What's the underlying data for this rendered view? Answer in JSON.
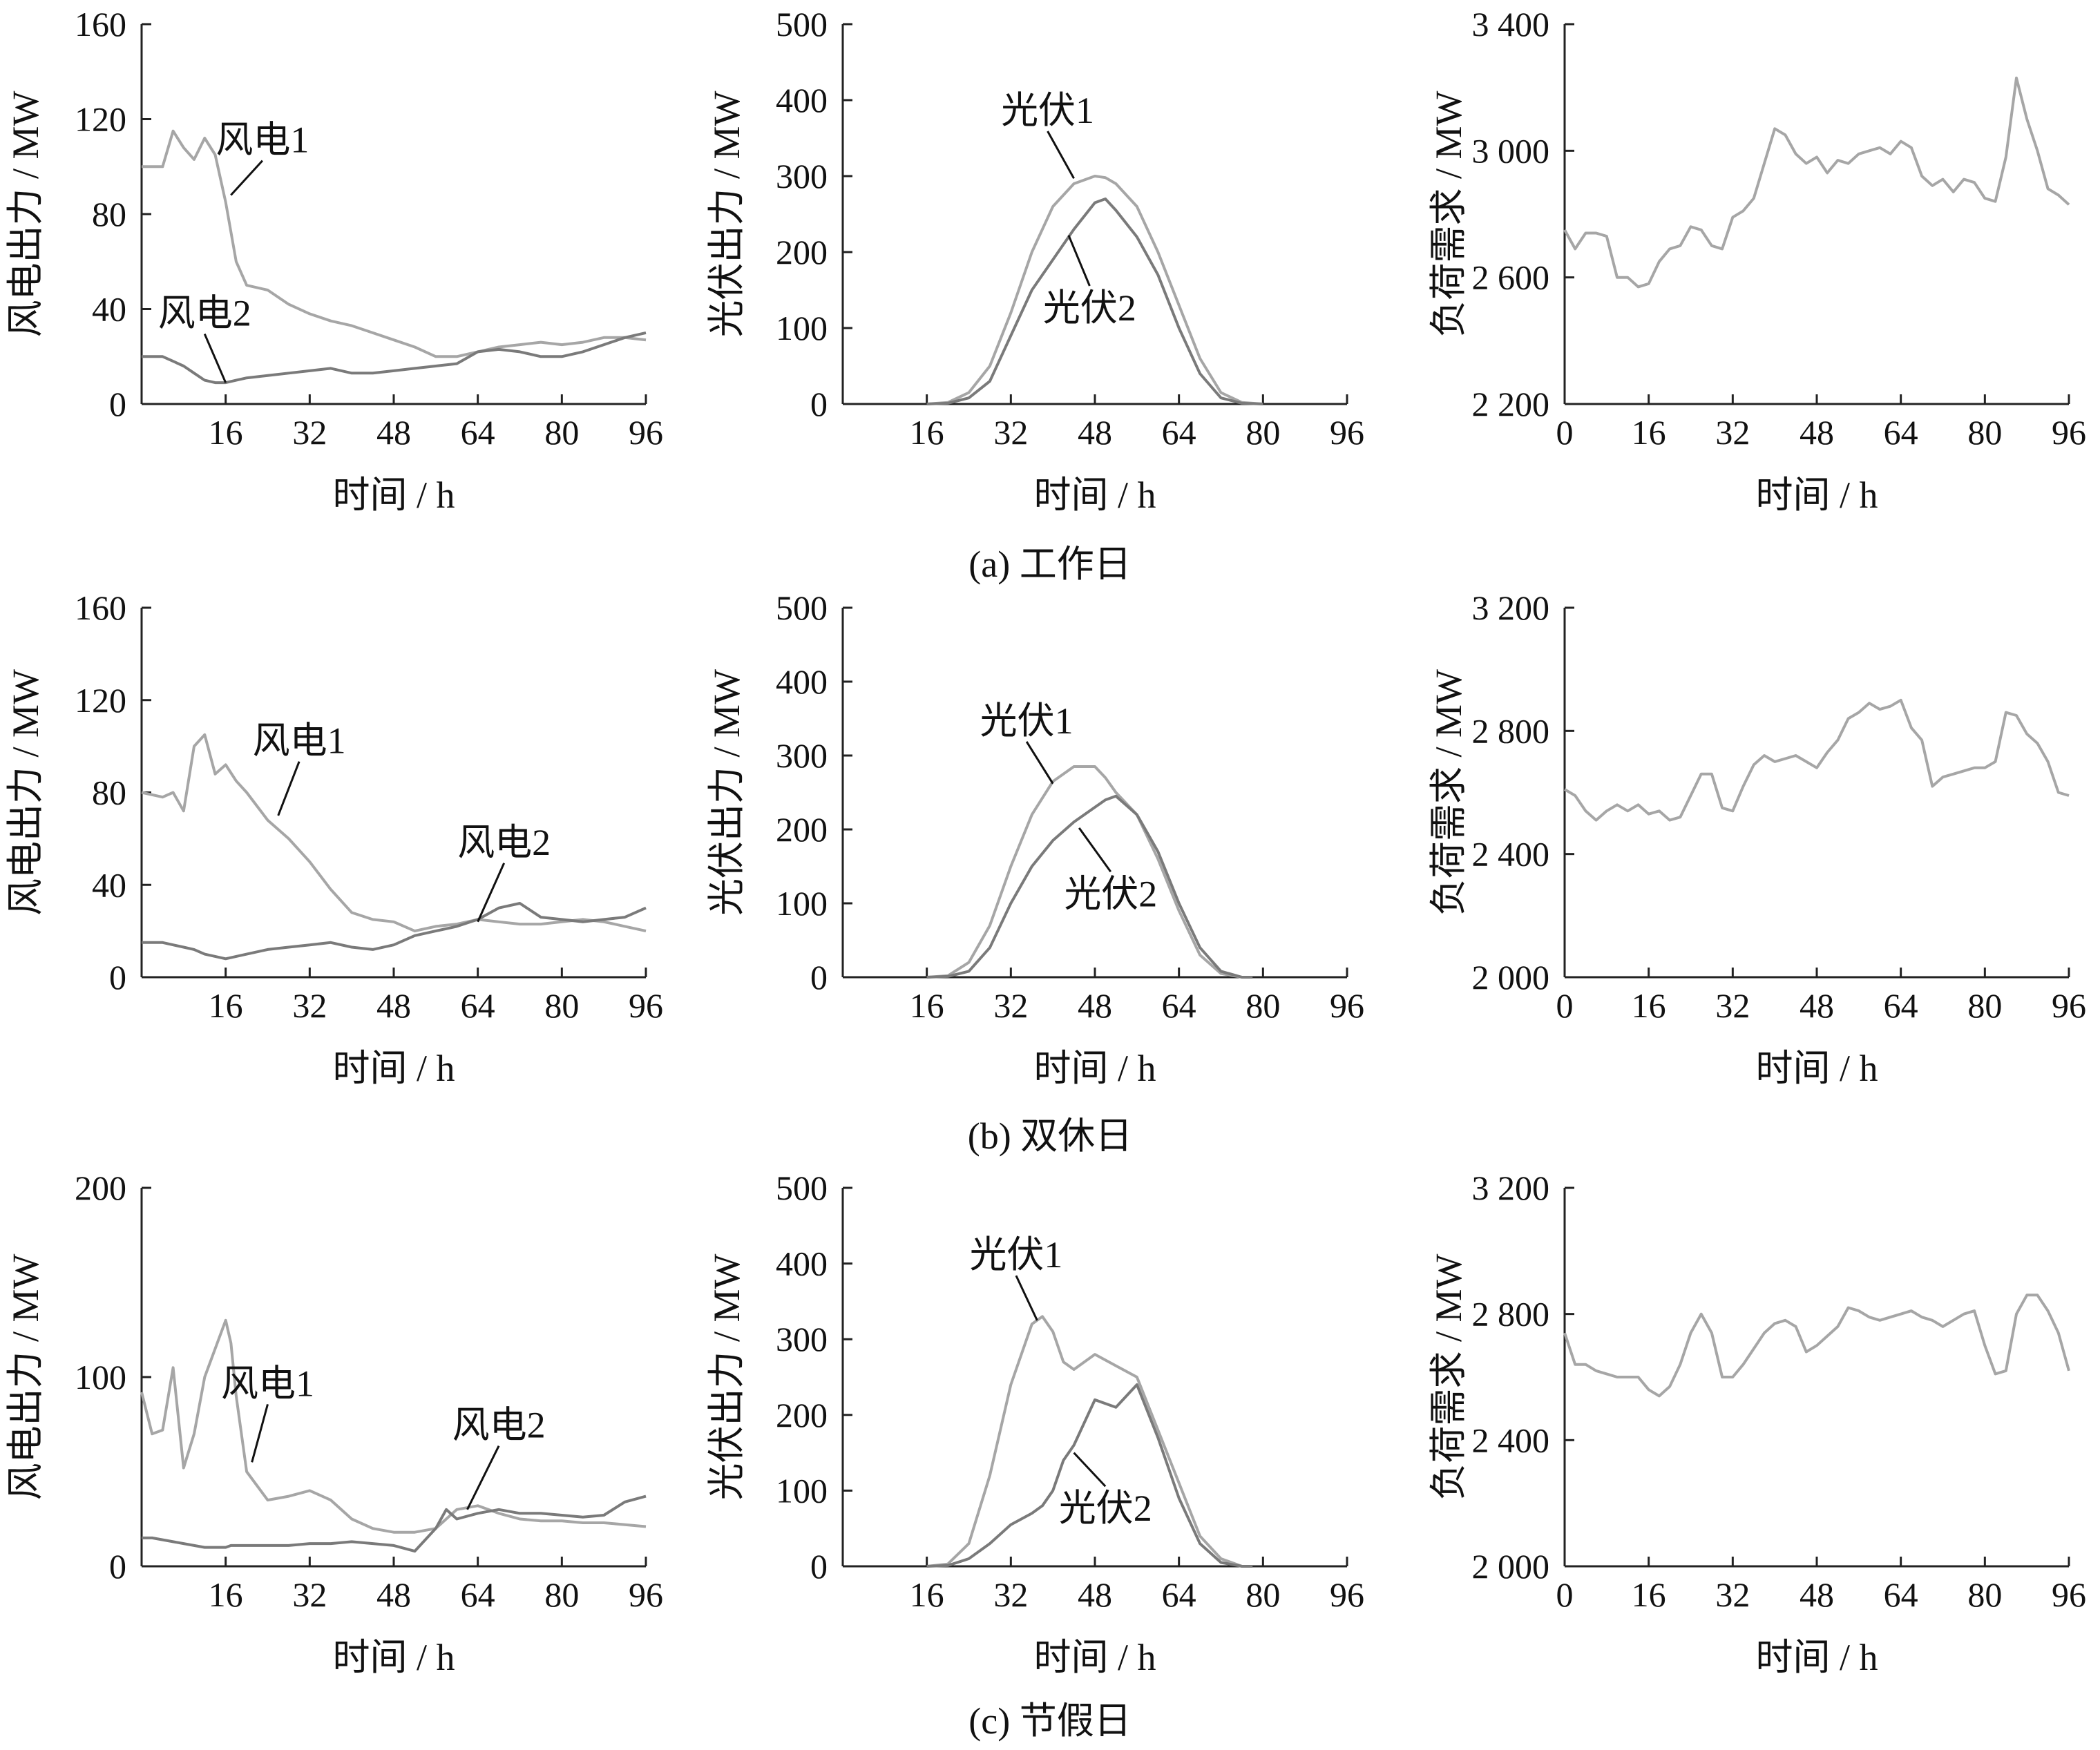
{
  "colors": {
    "series_light": "#a6a6a6",
    "series_dark": "#7a7a7a",
    "axis": "#222222",
    "leader": "#111111"
  },
  "captions": [
    "(a)  工作日",
    "(b)  双休日",
    "(c)  节假日"
  ],
  "chart_data": [
    {
      "id": "a-wind",
      "type": "line",
      "xlabel": "时间 / h",
      "ylabel": "风电出力 / MW",
      "xlim": [
        0,
        96
      ],
      "ylim": [
        0,
        160
      ],
      "xticks": [
        "16",
        "32",
        "48",
        "64",
        "80",
        "96"
      ],
      "yticks": [
        "0",
        "40",
        "80",
        "120",
        "160"
      ],
      "x": [
        0,
        4,
        6,
        8,
        10,
        12,
        14,
        16,
        18,
        20,
        24,
        28,
        32,
        36,
        40,
        44,
        48,
        52,
        56,
        60,
        64,
        68,
        72,
        76,
        80,
        84,
        88,
        92,
        96
      ],
      "series": [
        {
          "name": "风电1",
          "color": "light",
          "values": [
            100,
            100,
            115,
            108,
            103,
            112,
            105,
            85,
            60,
            50,
            48,
            42,
            38,
            35,
            33,
            30,
            27,
            24,
            20,
            20,
            22,
            24,
            25,
            26,
            25,
            26,
            28,
            28,
            27
          ]
        },
        {
          "name": "风电2",
          "color": "dark",
          "values": [
            20,
            20,
            18,
            16,
            13,
            10,
            9,
            9,
            10,
            11,
            12,
            13,
            14,
            15,
            13,
            13,
            14,
            15,
            16,
            17,
            22,
            23,
            22,
            20,
            20,
            22,
            25,
            28,
            30
          ]
        }
      ],
      "annotations": [
        {
          "text": "风电1",
          "x": 17,
          "y": 88,
          "tx": 23,
          "ty": 106
        },
        {
          "text": "风电2",
          "x": 16,
          "y": 9,
          "tx": 12,
          "ty": 33
        }
      ]
    },
    {
      "id": "a-pv",
      "type": "line",
      "xlabel": "时间 / h",
      "ylabel": "光伏出力 / MW",
      "xlim": [
        0,
        96
      ],
      "ylim": [
        0,
        500
      ],
      "xticks": [
        "16",
        "32",
        "48",
        "64",
        "80",
        "96"
      ],
      "yticks": [
        "0",
        "100",
        "200",
        "300",
        "400",
        "500"
      ],
      "x": [
        16,
        20,
        24,
        28,
        32,
        36,
        40,
        44,
        48,
        50,
        52,
        56,
        60,
        64,
        68,
        72,
        76,
        80
      ],
      "series": [
        {
          "name": "光伏1",
          "color": "light",
          "values": [
            0,
            2,
            15,
            50,
            120,
            200,
            260,
            290,
            300,
            298,
            290,
            260,
            200,
            130,
            60,
            15,
            2,
            0
          ]
        },
        {
          "name": "光伏2",
          "color": "dark",
          "values": [
            0,
            1,
            8,
            30,
            90,
            150,
            190,
            230,
            265,
            270,
            255,
            220,
            170,
            100,
            40,
            8,
            1,
            0
          ]
        }
      ],
      "annotations": [
        {
          "text": "光伏1",
          "x": 44,
          "y": 297,
          "tx": 39,
          "ty": 370
        },
        {
          "text": "光伏2",
          "x": 43,
          "y": 222,
          "tx": 47,
          "ty": 110
        }
      ]
    },
    {
      "id": "a-load",
      "type": "line",
      "xlabel": "时间 / h",
      "ylabel": "负荷需求 / MW",
      "xlim": [
        0,
        96
      ],
      "ylim": [
        2200,
        3400
      ],
      "xticks": [
        "0",
        "16",
        "32",
        "48",
        "64",
        "80",
        "96"
      ],
      "yticks": [
        "2 200",
        "2 600",
        "3 000",
        "3 400"
      ],
      "x": [
        0,
        2,
        4,
        6,
        8,
        10,
        12,
        14,
        16,
        18,
        20,
        22,
        24,
        26,
        28,
        30,
        32,
        34,
        36,
        38,
        40,
        42,
        44,
        46,
        48,
        50,
        52,
        54,
        56,
        58,
        60,
        62,
        64,
        66,
        68,
        70,
        72,
        74,
        76,
        78,
        80,
        82,
        84,
        86,
        88,
        90,
        92,
        94,
        96
      ],
      "series": [
        {
          "name": "",
          "color": "light",
          "values": [
            2750,
            2690,
            2740,
            2740,
            2730,
            2600,
            2600,
            2570,
            2580,
            2650,
            2690,
            2700,
            2760,
            2750,
            2700,
            2690,
            2790,
            2810,
            2850,
            2960,
            3070,
            3050,
            2990,
            2960,
            2980,
            2930,
            2970,
            2960,
            2990,
            3000,
            3010,
            2990,
            3030,
            3010,
            2920,
            2890,
            2910,
            2870,
            2910,
            2900,
            2850,
            2840,
            2980,
            3230,
            3100,
            3000,
            2880,
            2860,
            2830
          ]
        }
      ],
      "annotations": []
    },
    {
      "id": "b-wind",
      "type": "line",
      "xlabel": "时间 / h",
      "ylabel": "风电出力 / MW",
      "xlim": [
        0,
        96
      ],
      "ylim": [
        0,
        160
      ],
      "xticks": [
        "16",
        "32",
        "48",
        "64",
        "80",
        "96"
      ],
      "yticks": [
        "0",
        "40",
        "80",
        "120",
        "160"
      ],
      "x": [
        0,
        4,
        6,
        8,
        10,
        12,
        14,
        16,
        18,
        20,
        24,
        28,
        32,
        36,
        40,
        44,
        48,
        52,
        56,
        60,
        64,
        68,
        72,
        76,
        80,
        84,
        88,
        92,
        96
      ],
      "series": [
        {
          "name": "风电1",
          "color": "light",
          "values": [
            80,
            78,
            80,
            72,
            100,
            105,
            88,
            92,
            85,
            80,
            68,
            60,
            50,
            38,
            28,
            25,
            24,
            20,
            22,
            23,
            25,
            24,
            23,
            23,
            24,
            25,
            24,
            22,
            20
          ]
        },
        {
          "name": "风电2",
          "color": "dark",
          "values": [
            15,
            15,
            14,
            13,
            12,
            10,
            9,
            8,
            9,
            10,
            12,
            13,
            14,
            15,
            13,
            12,
            14,
            18,
            20,
            22,
            25,
            30,
            32,
            26,
            25,
            24,
            25,
            26,
            30
          ]
        }
      ],
      "annotations": [
        {
          "text": "风电1",
          "x": 26,
          "y": 70,
          "tx": 30,
          "ty": 97
        },
        {
          "text": "风电2",
          "x": 64,
          "y": 24,
          "tx": 69,
          "ty": 53
        }
      ]
    },
    {
      "id": "b-pv",
      "type": "line",
      "xlabel": "时间 / h",
      "ylabel": "光伏出力 / MW",
      "xlim": [
        0,
        96
      ],
      "ylim": [
        0,
        500
      ],
      "xticks": [
        "16",
        "32",
        "48",
        "64",
        "80",
        "96"
      ],
      "yticks": [
        "0",
        "100",
        "200",
        "300",
        "400",
        "500"
      ],
      "x": [
        16,
        20,
        24,
        28,
        32,
        36,
        40,
        44,
        48,
        50,
        52,
        56,
        60,
        64,
        68,
        72,
        76,
        78
      ],
      "series": [
        {
          "name": "光伏1",
          "color": "light",
          "values": [
            0,
            2,
            20,
            70,
            150,
            220,
            265,
            285,
            285,
            270,
            250,
            220,
            160,
            90,
            30,
            5,
            0,
            0
          ]
        },
        {
          "name": "光伏2",
          "color": "dark",
          "values": [
            0,
            1,
            8,
            40,
            100,
            150,
            185,
            210,
            230,
            240,
            245,
            220,
            170,
            100,
            40,
            8,
            0,
            0
          ]
        }
      ],
      "annotations": [
        {
          "text": "光伏1",
          "x": 40,
          "y": 262,
          "tx": 35,
          "ty": 330
        },
        {
          "text": "光伏2",
          "x": 45,
          "y": 202,
          "tx": 51,
          "ty": 96
        }
      ]
    },
    {
      "id": "b-load",
      "type": "line",
      "xlabel": "时间 / h",
      "ylabel": "负荷需求 / MW",
      "xlim": [
        0,
        96
      ],
      "ylim": [
        2000,
        3200
      ],
      "xticks": [
        "0",
        "16",
        "32",
        "48",
        "64",
        "80",
        "96"
      ],
      "yticks": [
        "2 000",
        "2 400",
        "2 800",
        "3 200"
      ],
      "x": [
        0,
        2,
        4,
        6,
        8,
        10,
        12,
        14,
        16,
        18,
        20,
        22,
        24,
        26,
        28,
        30,
        32,
        34,
        36,
        38,
        40,
        42,
        44,
        46,
        48,
        50,
        52,
        54,
        56,
        58,
        60,
        62,
        64,
        66,
        68,
        70,
        72,
        74,
        76,
        78,
        80,
        82,
        84,
        86,
        88,
        90,
        92,
        94,
        96
      ],
      "series": [
        {
          "name": "",
          "color": "light",
          "values": [
            2610,
            2590,
            2540,
            2510,
            2540,
            2560,
            2540,
            2560,
            2530,
            2540,
            2510,
            2520,
            2590,
            2660,
            2660,
            2550,
            2540,
            2620,
            2690,
            2720,
            2700,
            2710,
            2720,
            2700,
            2680,
            2730,
            2770,
            2840,
            2860,
            2890,
            2870,
            2880,
            2900,
            2810,
            2770,
            2620,
            2650,
            2660,
            2670,
            2680,
            2680,
            2700,
            2860,
            2850,
            2790,
            2760,
            2700,
            2600,
            2590
          ]
        }
      ],
      "annotations": []
    },
    {
      "id": "c-wind",
      "type": "line",
      "xlabel": "时间 / h",
      "ylabel": "风电出力 / MW",
      "xlim": [
        0,
        96
      ],
      "ylim": [
        0,
        200
      ],
      "xticks": [
        "16",
        "32",
        "48",
        "64",
        "80",
        "96"
      ],
      "yticks": [
        "0",
        "100",
        "200"
      ],
      "x": [
        0,
        2,
        4,
        6,
        8,
        10,
        12,
        14,
        16,
        17,
        18,
        20,
        24,
        28,
        32,
        36,
        40,
        44,
        48,
        52,
        56,
        58,
        60,
        64,
        68,
        72,
        76,
        80,
        84,
        88,
        92,
        96
      ],
      "series": [
        {
          "name": "风电1",
          "color": "light",
          "values": [
            92,
            70,
            72,
            105,
            52,
            70,
            100,
            115,
            130,
            118,
            90,
            50,
            35,
            37,
            40,
            35,
            25,
            20,
            18,
            18,
            20,
            25,
            30,
            32,
            28,
            25,
            24,
            24,
            23,
            23,
            22,
            21
          ]
        },
        {
          "name": "风电2",
          "color": "dark",
          "values": [
            15,
            15,
            14,
            13,
            12,
            11,
            10,
            10,
            10,
            11,
            11,
            11,
            11,
            11,
            12,
            12,
            13,
            12,
            11,
            8,
            20,
            30,
            25,
            28,
            30,
            28,
            28,
            27,
            26,
            27,
            34,
            37
          ]
        }
      ],
      "annotations": [
        {
          "text": "风电1",
          "x": 21,
          "y": 55,
          "tx": 24,
          "ty": 90
        },
        {
          "text": "风电2",
          "x": 62,
          "y": 30,
          "tx": 68,
          "ty": 68
        }
      ]
    },
    {
      "id": "c-pv",
      "type": "line",
      "xlabel": "时间 / h",
      "ylabel": "光伏出力 / MW",
      "xlim": [
        0,
        96
      ],
      "ylim": [
        0,
        500
      ],
      "xticks": [
        "16",
        "32",
        "48",
        "64",
        "80",
        "96"
      ],
      "yticks": [
        "0",
        "100",
        "200",
        "300",
        "400",
        "500"
      ],
      "x": [
        16,
        20,
        24,
        28,
        32,
        36,
        38,
        40,
        42,
        44,
        48,
        52,
        56,
        60,
        64,
        68,
        72,
        76,
        78
      ],
      "series": [
        {
          "name": "光伏1",
          "color": "light",
          "values": [
            0,
            3,
            30,
            120,
            240,
            320,
            330,
            310,
            270,
            260,
            280,
            265,
            250,
            180,
            110,
            40,
            10,
            0,
            0
          ]
        },
        {
          "name": "光伏2",
          "color": "dark",
          "values": [
            0,
            1,
            10,
            30,
            55,
            70,
            80,
            100,
            140,
            160,
            220,
            210,
            240,
            170,
            90,
            30,
            5,
            0,
            0
          ]
        }
      ],
      "annotations": [
        {
          "text": "光伏1",
          "x": 37,
          "y": 325,
          "tx": 33,
          "ty": 395
        },
        {
          "text": "光伏2",
          "x": 44,
          "y": 150,
          "tx": 50,
          "ty": 60
        }
      ]
    },
    {
      "id": "c-load",
      "type": "line",
      "xlabel": "时间 / h",
      "ylabel": "负荷需求 / MW",
      "xlim": [
        0,
        96
      ],
      "ylim": [
        2000,
        3200
      ],
      "xticks": [
        "0",
        "16",
        "32",
        "48",
        "64",
        "80",
        "96"
      ],
      "yticks": [
        "2 000",
        "2 400",
        "2 800",
        "3 200"
      ],
      "x": [
        0,
        2,
        4,
        6,
        8,
        10,
        12,
        14,
        16,
        18,
        20,
        22,
        24,
        26,
        28,
        30,
        32,
        34,
        36,
        38,
        40,
        42,
        44,
        46,
        48,
        50,
        52,
        54,
        56,
        58,
        60,
        62,
        64,
        66,
        68,
        70,
        72,
        74,
        76,
        78,
        80,
        82,
        84,
        86,
        88,
        90,
        92,
        94,
        96
      ],
      "series": [
        {
          "name": "",
          "color": "light",
          "values": [
            2740,
            2640,
            2640,
            2620,
            2610,
            2600,
            2600,
            2600,
            2560,
            2540,
            2570,
            2640,
            2740,
            2800,
            2740,
            2600,
            2600,
            2640,
            2690,
            2740,
            2770,
            2780,
            2760,
            2680,
            2700,
            2730,
            2760,
            2820,
            2810,
            2790,
            2780,
            2790,
            2800,
            2810,
            2790,
            2780,
            2760,
            2780,
            2800,
            2810,
            2700,
            2610,
            2620,
            2800,
            2860,
            2860,
            2810,
            2740,
            2620
          ]
        }
      ],
      "annotations": []
    }
  ]
}
